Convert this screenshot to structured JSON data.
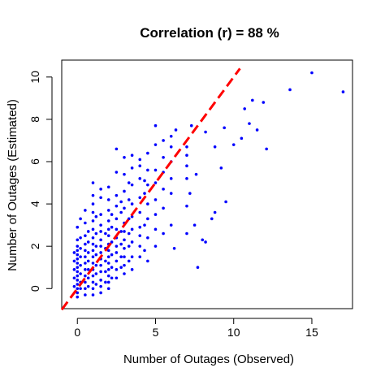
{
  "chart_data": {
    "type": "scatter",
    "title": "Correlation (r) = 88 %",
    "xlabel": "Number of Outages (Observed)",
    "ylabel": "Number of Outages (Estimated)",
    "xlim": [
      -1.0,
      17.6
    ],
    "ylim": [
      -0.95,
      10.8
    ],
    "xticks": [
      0,
      5,
      10,
      15
    ],
    "yticks": [
      0,
      2,
      4,
      6,
      8,
      10
    ],
    "grid": false,
    "legend": "none",
    "point_color": "#0000ff",
    "reference_line": {
      "style": "dashed",
      "color": "#ff0000",
      "points": [
        [
          -1.0,
          -1.0
        ],
        [
          10.4,
          10.4
        ]
      ]
    },
    "points": [
      [
        0,
        -0.4
      ],
      [
        0,
        -0.2
      ],
      [
        0,
        0
      ],
      [
        0,
        0.2
      ],
      [
        0,
        0.4
      ],
      [
        0,
        0.6
      ],
      [
        0,
        0.8
      ],
      [
        0,
        1.0
      ],
      [
        0,
        1.2
      ],
      [
        0,
        1.4
      ],
      [
        0,
        1.6
      ],
      [
        0,
        1.8
      ],
      [
        0,
        2.0
      ],
      [
        0,
        2.3
      ],
      [
        0,
        2.9
      ],
      [
        -0.2,
        0.1
      ],
      [
        -0.2,
        0.5
      ],
      [
        -0.2,
        0.9
      ],
      [
        -0.2,
        1.3
      ],
      [
        -0.2,
        1.7
      ],
      [
        0.2,
        0.0
      ],
      [
        0.2,
        0.3
      ],
      [
        0.2,
        0.7
      ],
      [
        0.2,
        1.1
      ],
      [
        0.2,
        1.5
      ],
      [
        0.2,
        1.9
      ],
      [
        0.2,
        2.4
      ],
      [
        0.2,
        3.3
      ],
      [
        0.5,
        -0.3
      ],
      [
        0.5,
        0
      ],
      [
        0.5,
        0.3
      ],
      [
        0.5,
        0.6
      ],
      [
        0.5,
        0.9
      ],
      [
        0.5,
        1.2
      ],
      [
        0.5,
        1.5
      ],
      [
        0.5,
        1.8
      ],
      [
        0.5,
        2.1
      ],
      [
        0.5,
        2.5
      ],
      [
        0.5,
        3.1
      ],
      [
        0.5,
        3.7
      ],
      [
        0.7,
        0.1
      ],
      [
        0.7,
        0.5
      ],
      [
        0.7,
        0.9
      ],
      [
        0.7,
        1.3
      ],
      [
        0.7,
        1.7
      ],
      [
        0.7,
        2.2
      ],
      [
        0.7,
        2.7
      ],
      [
        1,
        -0.3
      ],
      [
        1,
        0
      ],
      [
        1,
        0.3
      ],
      [
        1,
        0.6
      ],
      [
        1,
        0.9
      ],
      [
        1,
        1.2
      ],
      [
        1,
        1.5
      ],
      [
        1,
        1.8
      ],
      [
        1,
        2.1
      ],
      [
        1,
        2.4
      ],
      [
        1,
        2.8
      ],
      [
        1,
        3.2
      ],
      [
        1,
        3.6
      ],
      [
        1,
        4.0
      ],
      [
        1,
        4.4
      ],
      [
        1,
        5.0
      ],
      [
        1.2,
        0.2
      ],
      [
        1.2,
        0.7
      ],
      [
        1.2,
        1.1
      ],
      [
        1.2,
        1.6
      ],
      [
        1.2,
        2.0
      ],
      [
        1.2,
        2.6
      ],
      [
        1.2,
        3.4
      ],
      [
        1.5,
        -0.2
      ],
      [
        1.5,
        0.1
      ],
      [
        1.5,
        0.4
      ],
      [
        1.5,
        0.8
      ],
      [
        1.5,
        1.1
      ],
      [
        1.5,
        1.4
      ],
      [
        1.5,
        1.7
      ],
      [
        1.5,
        2.0
      ],
      [
        1.5,
        2.3
      ],
      [
        1.5,
        2.7
      ],
      [
        1.5,
        3.0
      ],
      [
        1.5,
        3.5
      ],
      [
        1.5,
        4.3
      ],
      [
        1.5,
        4.7
      ],
      [
        1.8,
        0.3
      ],
      [
        1.8,
        0.8
      ],
      [
        1.8,
        1.3
      ],
      [
        1.8,
        1.9
      ],
      [
        1.8,
        2.6
      ],
      [
        2,
        0
      ],
      [
        2,
        0.3
      ],
      [
        2,
        0.6
      ],
      [
        2,
        0.9
      ],
      [
        2,
        1.2
      ],
      [
        2,
        1.5
      ],
      [
        2,
        1.8
      ],
      [
        2,
        2.1
      ],
      [
        2,
        2.5
      ],
      [
        2,
        2.8
      ],
      [
        2,
        3.2
      ],
      [
        2,
        3.7
      ],
      [
        2,
        4.2
      ],
      [
        2,
        4.8
      ],
      [
        2.2,
        0.5
      ],
      [
        2.2,
        1.0
      ],
      [
        2.2,
        1.6
      ],
      [
        2.2,
        2.2
      ],
      [
        2.2,
        2.9
      ],
      [
        2.2,
        3.5
      ],
      [
        2.5,
        0.5
      ],
      [
        2.5,
        0.9
      ],
      [
        2.5,
        1.3
      ],
      [
        2.5,
        1.7
      ],
      [
        2.5,
        2.0
      ],
      [
        2.5,
        2.4
      ],
      [
        2.5,
        2.8
      ],
      [
        2.5,
        3.3
      ],
      [
        2.5,
        3.9
      ],
      [
        2.5,
        4.4
      ],
      [
        2.5,
        5.5
      ],
      [
        2.5,
        6.6
      ],
      [
        2.8,
        1.0
      ],
      [
        2.8,
        1.5
      ],
      [
        2.8,
        2.1
      ],
      [
        2.8,
        2.7
      ],
      [
        2.8,
        3.6
      ],
      [
        2.8,
        4.1
      ],
      [
        3,
        0.7
      ],
      [
        3,
        1.1
      ],
      [
        3,
        1.5
      ],
      [
        3,
        1.9
      ],
      [
        3,
        2.3
      ],
      [
        3,
        2.7
      ],
      [
        3,
        3.1
      ],
      [
        3,
        3.8
      ],
      [
        3,
        4.6
      ],
      [
        3,
        5.4
      ],
      [
        3,
        6.2
      ],
      [
        3.3,
        1.3
      ],
      [
        3.3,
        2.0
      ],
      [
        3.3,
        2.6
      ],
      [
        3.3,
        3.3
      ],
      [
        3.3,
        4.2
      ],
      [
        3.3,
        5.0
      ],
      [
        3.5,
        0.9
      ],
      [
        3.5,
        1.5
      ],
      [
        3.5,
        2.2
      ],
      [
        3.5,
        2.8
      ],
      [
        3.5,
        3.4
      ],
      [
        3.5,
        4.0
      ],
      [
        3.5,
        4.9
      ],
      [
        3.5,
        5.7
      ],
      [
        3.5,
        6.3
      ],
      [
        4,
        1.5
      ],
      [
        4,
        2.0
      ],
      [
        4,
        2.5
      ],
      [
        4,
        2.9
      ],
      [
        4,
        3.6
      ],
      [
        4,
        4.3
      ],
      [
        4,
        5.2
      ],
      [
        4,
        5.8
      ],
      [
        4,
        6.1
      ],
      [
        4.3,
        1.8
      ],
      [
        4.3,
        3.0
      ],
      [
        4.3,
        4.5
      ],
      [
        4.3,
        5.1
      ],
      [
        4.5,
        1.3
      ],
      [
        4.5,
        2.4
      ],
      [
        4.5,
        3.3
      ],
      [
        4.5,
        4.0
      ],
      [
        4.5,
        4.9
      ],
      [
        4.5,
        5.6
      ],
      [
        4.5,
        6.4
      ],
      [
        5,
        2.0
      ],
      [
        5,
        2.8
      ],
      [
        5,
        3.5
      ],
      [
        5,
        4.2
      ],
      [
        5,
        5.0
      ],
      [
        5,
        5.6
      ],
      [
        5,
        6.8
      ],
      [
        5,
        7.7
      ],
      [
        5.5,
        2.6
      ],
      [
        5.5,
        3.8
      ],
      [
        5.5,
        4.7
      ],
      [
        5.5,
        5.5
      ],
      [
        5.5,
        6.2
      ],
      [
        5.5,
        7.0
      ],
      [
        6,
        3.0
      ],
      [
        6,
        4.5
      ],
      [
        6,
        5.2
      ],
      [
        6,
        6.0
      ],
      [
        6,
        6.7
      ],
      [
        6,
        7.2
      ],
      [
        6.2,
        1.9
      ],
      [
        6.3,
        7.5
      ],
      [
        7,
        2.6
      ],
      [
        7,
        3.9
      ],
      [
        7,
        5.2
      ],
      [
        7,
        5.8
      ],
      [
        7,
        6.3
      ],
      [
        7,
        6.7
      ],
      [
        7.2,
        4.5
      ],
      [
        7.3,
        7.7
      ],
      [
        7.5,
        3.0
      ],
      [
        7.6,
        5.4
      ],
      [
        7.7,
        1.0
      ],
      [
        8,
        2.3
      ],
      [
        8.2,
        2.2
      ],
      [
        8.2,
        7.4
      ],
      [
        8.6,
        3.3
      ],
      [
        8.8,
        3.6
      ],
      [
        8.8,
        6.7
      ],
      [
        9.2,
        5.7
      ],
      [
        9.4,
        7.6
      ],
      [
        9.5,
        4.1
      ],
      [
        10,
        6.8
      ],
      [
        10.5,
        7.1
      ],
      [
        10.7,
        8.5
      ],
      [
        11,
        7.8
      ],
      [
        11.2,
        8.9
      ],
      [
        11.5,
        7.5
      ],
      [
        11.9,
        8.8
      ],
      [
        12.1,
        6.6
      ],
      [
        13.6,
        9.4
      ],
      [
        15,
        10.2
      ],
      [
        17,
        9.3
      ]
    ]
  }
}
